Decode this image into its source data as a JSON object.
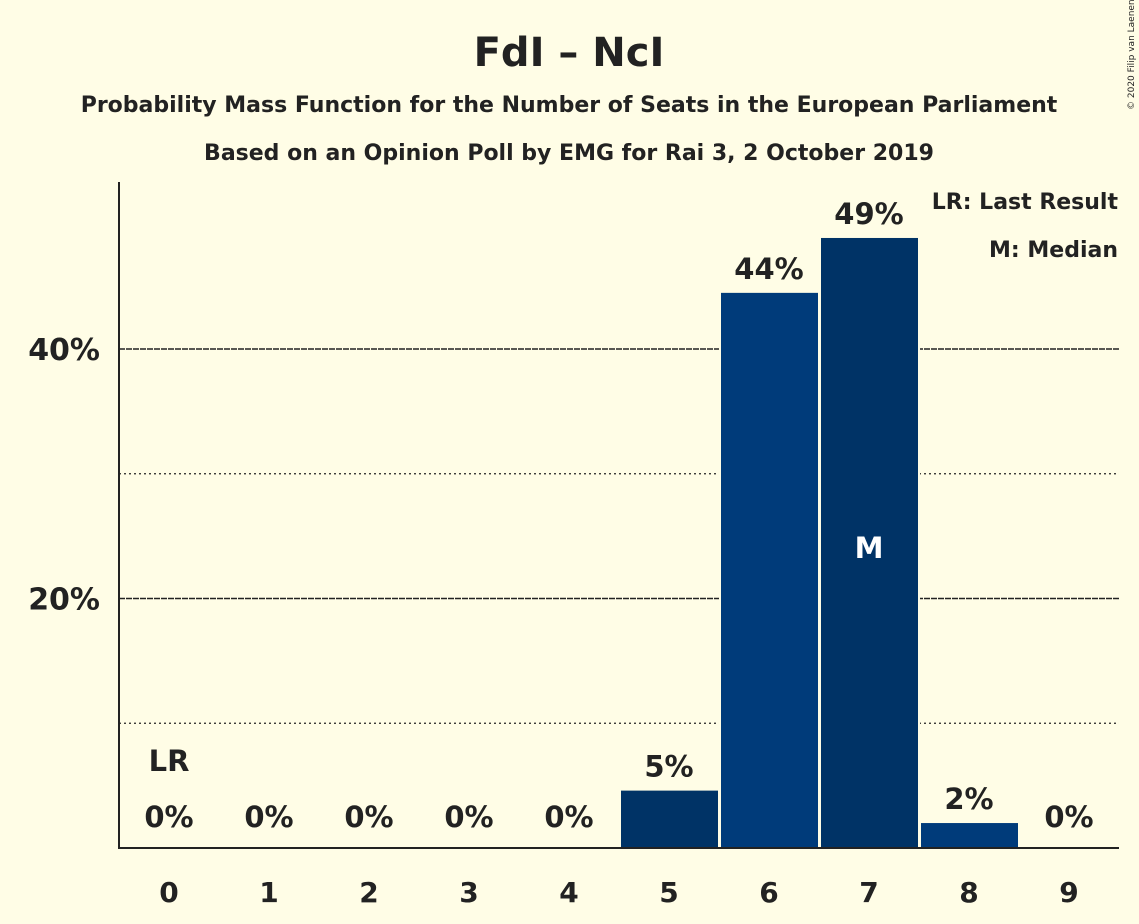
{
  "chart_data": {
    "type": "bar",
    "title": "FdI – NcI",
    "subtitle": "Probability Mass Function for the Number of Seats in the European Parliament",
    "subtitle2": "Based on an Opinion Poll by EMG for Rai 3, 2 October 2019",
    "credit": "© 2020 Filip van Laenen",
    "categories": [
      "0",
      "1",
      "2",
      "3",
      "4",
      "5",
      "6",
      "7",
      "8",
      "9"
    ],
    "values": [
      0,
      0,
      0,
      0,
      0,
      4.6,
      44.5,
      48.9,
      2.0,
      0
    ],
    "value_labels": [
      "0%",
      "0%",
      "0%",
      "0%",
      "0%",
      "5%",
      "44%",
      "49%",
      "2%",
      "0%"
    ],
    "ylim": [
      0,
      53
    ],
    "yticks": [
      {
        "value": 20,
        "label": "20%"
      },
      {
        "value": 40,
        "label": "40%"
      }
    ],
    "minor_gridlines": [
      10,
      30
    ],
    "major_gridlines": [
      20,
      40
    ],
    "last_result": {
      "category": "0",
      "label": "LR"
    },
    "median": {
      "category": "7",
      "label": "M"
    },
    "legend": [
      "LR: Last Result",
      "M: Median"
    ],
    "legend_position": "top-right",
    "bar_colors": [
      "#003b7a",
      "#003366"
    ]
  }
}
